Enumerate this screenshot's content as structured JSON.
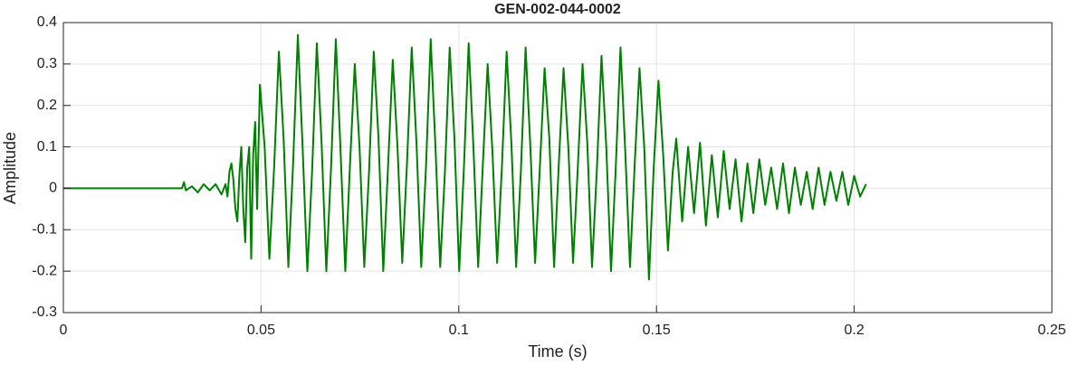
{
  "chart_data": {
    "type": "line",
    "title": "GEN-002-044-0002",
    "x_label": "Time (s)",
    "y_label": "Amplitude",
    "color": "#008000",
    "grid": true,
    "xlim": [
      0,
      0.25
    ],
    "ylim": [
      -0.3,
      0.4
    ],
    "xticks": [
      0,
      0.05,
      0.1,
      0.15,
      0.2,
      0.25
    ],
    "yticks": [
      -0.3,
      -0.2,
      -0.1,
      0,
      0.1,
      0.2,
      0.3,
      0.4
    ],
    "x": [
      0,
      0.03,
      0.0305,
      0.031,
      0.0325,
      0.034,
      0.0355,
      0.037,
      0.0385,
      0.04,
      0.041,
      0.0415,
      0.042,
      0.0425,
      0.043,
      0.0435,
      0.044,
      0.0445,
      0.045,
      0.0455,
      0.046,
      0.0465,
      0.047,
      0.0475,
      0.048,
      0.0485,
      0.049,
      0.0497,
      0.0509,
      0.0521,
      0.0533,
      0.0545,
      0.0557,
      0.0569,
      0.0581,
      0.0593,
      0.0605,
      0.0617,
      0.0629,
      0.0641,
      0.0653,
      0.0665,
      0.0677,
      0.0689,
      0.0701,
      0.0713,
      0.0725,
      0.0737,
      0.0749,
      0.0761,
      0.0773,
      0.0785,
      0.0797,
      0.0809,
      0.0821,
      0.0833,
      0.0845,
      0.0857,
      0.0869,
      0.0881,
      0.0893,
      0.0905,
      0.0917,
      0.0929,
      0.0941,
      0.0953,
      0.0965,
      0.0977,
      0.0989,
      0.1001,
      0.1013,
      0.1025,
      0.1037,
      0.1049,
      0.1061,
      0.1073,
      0.1085,
      0.1097,
      0.1109,
      0.1121,
      0.1133,
      0.1145,
      0.1157,
      0.1169,
      0.1181,
      0.1193,
      0.1205,
      0.1217,
      0.1229,
      0.1241,
      0.1253,
      0.1265,
      0.1277,
      0.1289,
      0.1301,
      0.1313,
      0.1325,
      0.1337,
      0.1349,
      0.1361,
      0.1373,
      0.1385,
      0.1397,
      0.1409,
      0.1421,
      0.1433,
      0.1445,
      0.1457,
      0.1469,
      0.1481,
      0.1493,
      0.1505,
      0.1517,
      0.1529,
      0.1541,
      0.155,
      0.1565,
      0.158,
      0.1595,
      0.161,
      0.1625,
      0.164,
      0.1655,
      0.167,
      0.1685,
      0.17,
      0.1715,
      0.173,
      0.1745,
      0.176,
      0.1775,
      0.179,
      0.1805,
      0.182,
      0.1835,
      0.185,
      0.1865,
      0.188,
      0.1895,
      0.191,
      0.1925,
      0.194,
      0.1955,
      0.197,
      0.1985,
      0.2,
      0.2015,
      0.203
    ],
    "values": [
      0,
      0,
      0.015,
      -0.005,
      0.005,
      -0.01,
      0.01,
      -0.005,
      0.01,
      -0.015,
      0.01,
      -0.02,
      0.04,
      0.06,
      0.02,
      -0.05,
      -0.08,
      0.03,
      0.1,
      -0.05,
      -0.13,
      0.05,
      0.1,
      -0.17,
      0.08,
      0.16,
      -0.05,
      0.25,
      0.1,
      -0.17,
      0.05,
      0.33,
      0.12,
      -0.19,
      0.06,
      0.37,
      0.1,
      -0.2,
      0.04,
      0.35,
      0.11,
      -0.2,
      0.05,
      0.36,
      0.09,
      -0.2,
      0.06,
      0.3,
      0.1,
      -0.19,
      0.04,
      0.33,
      0.12,
      -0.2,
      0.05,
      0.31,
      0.1,
      -0.18,
      0.06,
      0.34,
      0.11,
      -0.19,
      0.05,
      0.36,
      0.1,
      -0.19,
      0.04,
      0.34,
      0.12,
      -0.2,
      0.05,
      0.35,
      0.1,
      -0.19,
      0.06,
      0.3,
      0.09,
      -0.18,
      0.05,
      0.33,
      0.11,
      -0.19,
      0.04,
      0.34,
      0.1,
      -0.18,
      0.05,
      0.29,
      0.12,
      -0.19,
      0.06,
      0.29,
      0.1,
      -0.18,
      0.05,
      0.3,
      0.11,
      -0.19,
      0.04,
      0.32,
      0.1,
      -0.2,
      0.05,
      0.34,
      0.09,
      -0.19,
      0.06,
      0.29,
      0.1,
      -0.22,
      0.05,
      0.26,
      0.08,
      -0.15,
      0.04,
      0.12,
      -0.08,
      0.1,
      -0.06,
      0.11,
      -0.09,
      0.08,
      -0.07,
      0.09,
      -0.05,
      0.07,
      -0.08,
      0.06,
      -0.06,
      0.07,
      -0.04,
      0.05,
      -0.05,
      0.06,
      -0.06,
      0.05,
      -0.04,
      0.04,
      -0.05,
      0.05,
      -0.04,
      0.04,
      -0.03,
      0.04,
      -0.04,
      0.03,
      -0.02,
      0.01
    ]
  }
}
